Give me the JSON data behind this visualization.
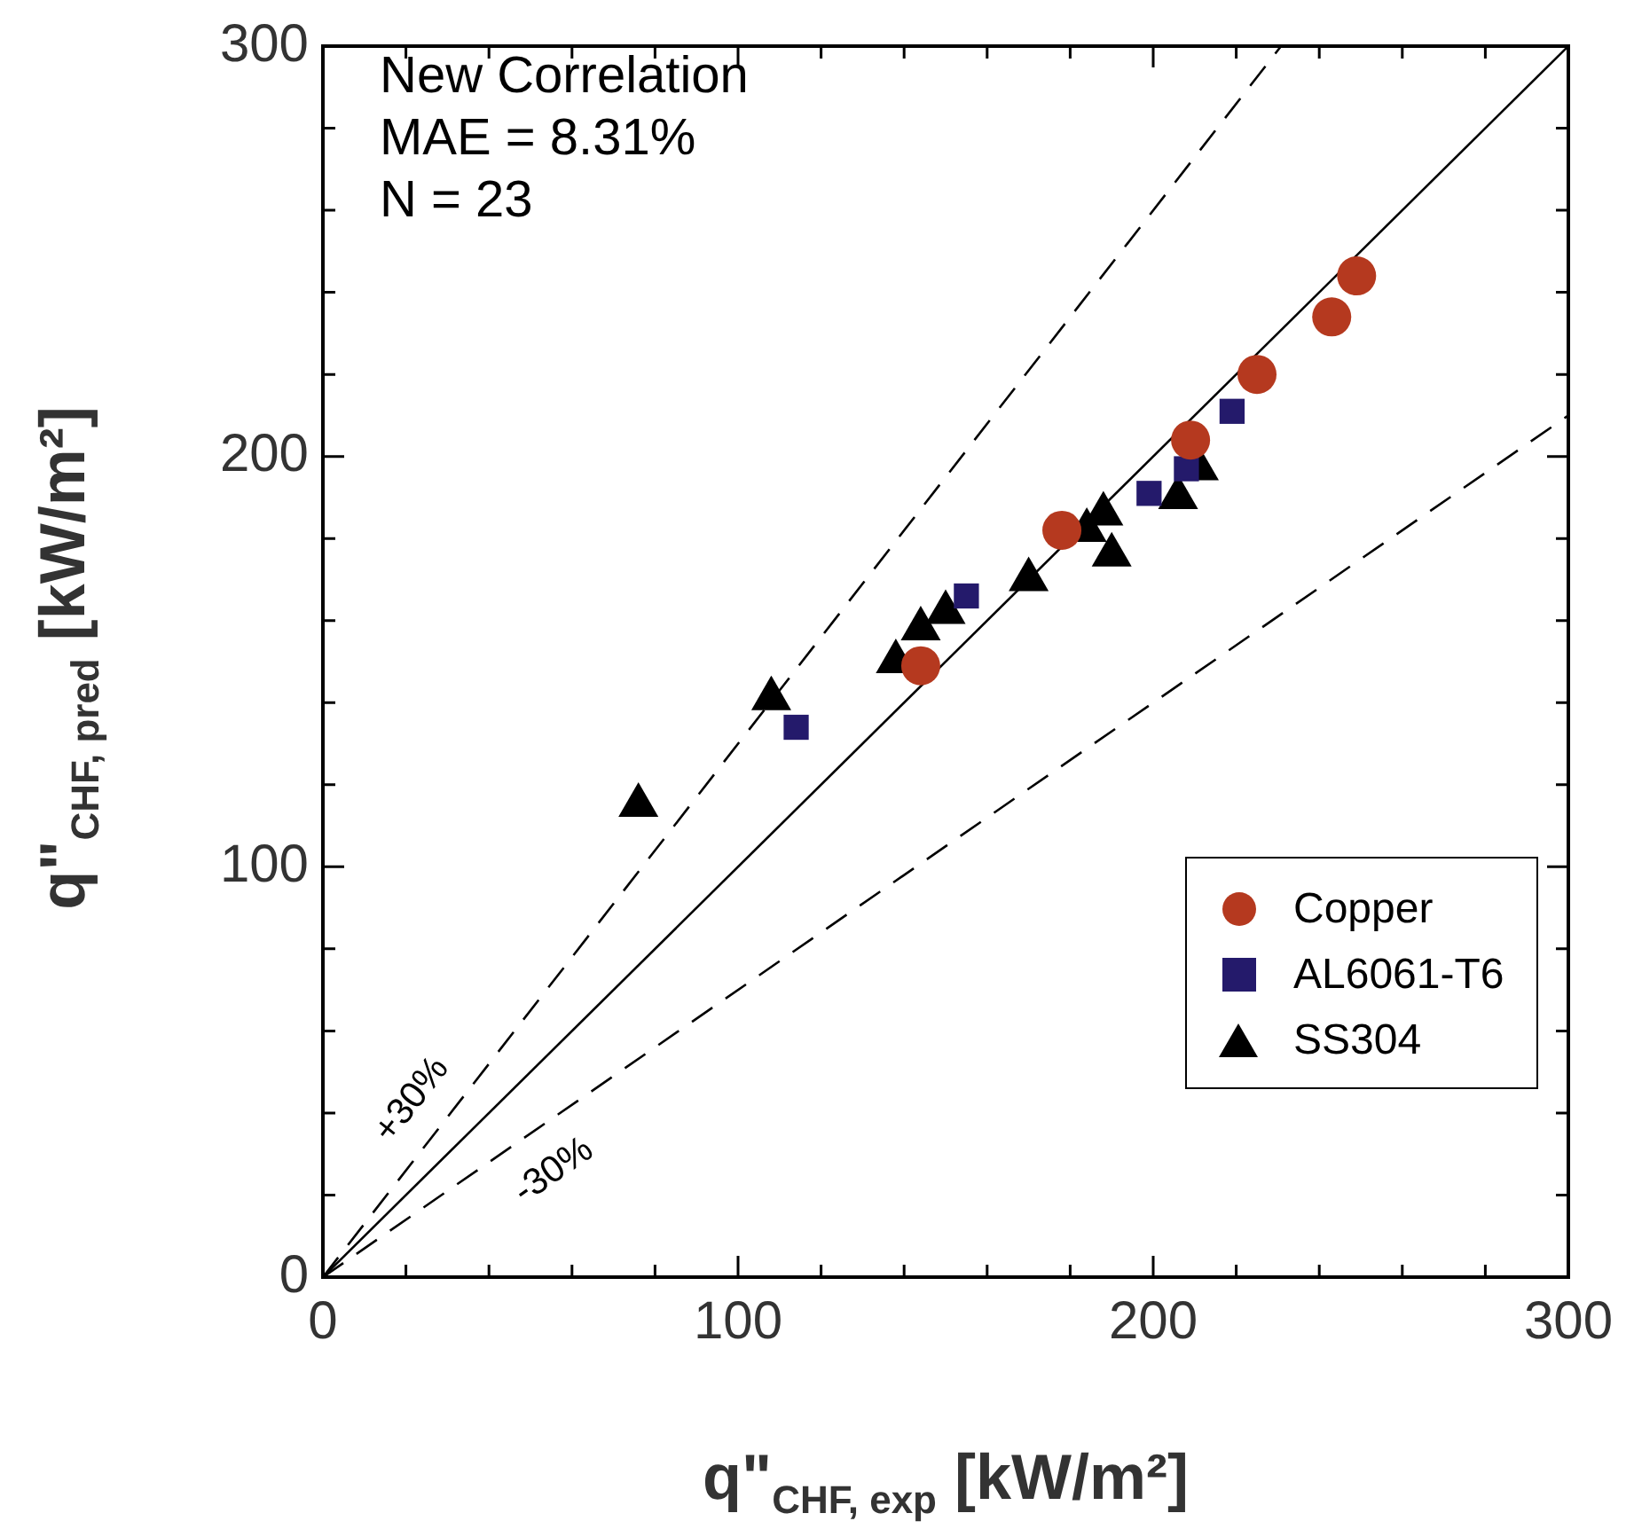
{
  "chart_data": {
    "type": "scatter",
    "xlabel": "q\"$_{CHF, exp}$ [kW/m²]",
    "ylabel": "q\"$_{CHF, pred}$ [kW/m²]",
    "xlim": [
      0,
      300
    ],
    "ylim": [
      0,
      300
    ],
    "xticks": [
      0,
      {
        "value": 20,
        "label": null
      },
      {
        "value": 40,
        "label": null
      },
      {
        "value": 60,
        "label": null
      },
      {
        "value": 80,
        "label": null
      },
      100,
      {
        "value": 120,
        "label": null
      },
      {
        "value": 140,
        "label": null
      },
      {
        "value": 160,
        "label": null
      },
      {
        "value": 180,
        "label": null
      },
      200,
      {
        "value": 220,
        "label": null
      },
      {
        "value": 240,
        "label": null
      },
      {
        "value": 260,
        "label": null
      },
      {
        "value": 280,
        "label": null
      },
      300
    ],
    "yticks": [
      0,
      {
        "value": 20,
        "label": null
      },
      {
        "value": 40,
        "label": null
      },
      {
        "value": 60,
        "label": null
      },
      {
        "value": 80,
        "label": null
      },
      100,
      {
        "value": 120,
        "label": null
      },
      {
        "value": 140,
        "label": null
      },
      {
        "value": 160,
        "label": null
      },
      {
        "value": 180,
        "label": null
      },
      200,
      {
        "value": 220,
        "label": null
      },
      {
        "value": 240,
        "label": null
      },
      {
        "value": 260,
        "label": null
      },
      {
        "value": 280,
        "label": null
      },
      300
    ],
    "grid": false,
    "legend": "bottom right",
    "annotations": [
      "New Correlation",
      "MAE = 8.31%",
      "N = 23",
      "+30%",
      "-30%"
    ],
    "series": [
      {
        "type": "line",
        "color": "#000000",
        "line_style": "solid",
        "marker": "none",
        "x": [
          0,
          300
        ],
        "values": [
          0,
          300
        ]
      },
      {
        "type": "line",
        "color": "#000000",
        "line_style": "dashed",
        "marker": "none",
        "x": [
          0,
          230.8
        ],
        "values": [
          0,
          300
        ]
      },
      {
        "type": "line",
        "color": "#000000",
        "line_style": "dashed",
        "marker": "none",
        "x": [
          0,
          300
        ],
        "values": [
          0,
          210
        ]
      },
      {
        "name": "Copper",
        "color": "#b5391f",
        "marker": "circle",
        "x": [
          144,
          178,
          209,
          225,
          243,
          249
        ],
        "values": [
          149,
          182,
          204,
          220,
          234,
          244
        ]
      },
      {
        "name": "AL6061-T6",
        "color": "#241a6b",
        "marker": "square",
        "x": [
          114,
          155,
          177,
          199,
          208,
          219
        ],
        "values": [
          134,
          166,
          null,
          191,
          197,
          211
        ]
      },
      {
        "name": "SS304",
        "color": "#000000",
        "marker": "triangle",
        "x": [
          76,
          108,
          138,
          144,
          150,
          170,
          188,
          184,
          190,
          206,
          211
        ],
        "values": [
          115,
          141,
          150,
          158,
          162,
          170,
          186,
          182,
          176,
          190,
          197
        ]
      }
    ]
  }
}
